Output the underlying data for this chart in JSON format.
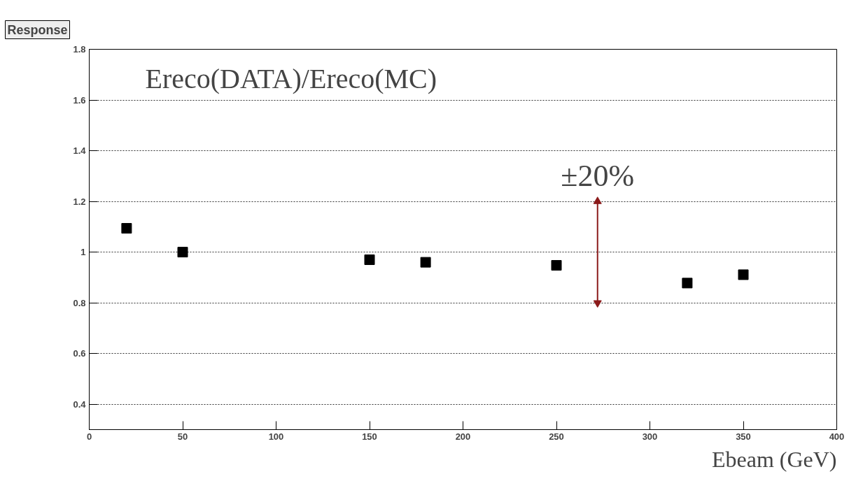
{
  "chart_data": {
    "type": "scatter",
    "title": "Response",
    "xlabel": "Ebeam (GeV)",
    "x": [
      20,
      50,
      150,
      180,
      250,
      320,
      350
    ],
    "series": [
      {
        "color": "#000000",
        "values": [
          1.094,
          1.0,
          0.97,
          0.96,
          0.948,
          0.878,
          0.911
        ]
      },
      {
        "type": "line",
        "color": "#8b1a1a",
        "x": [
          272,
          272
        ],
        "values": [
          0.8,
          1.2
        ],
        "marker": "triangle"
      }
    ],
    "marker": "square",
    "grid": "y",
    "xlim": [
      0,
      400
    ],
    "xticks": [
      0,
      50,
      100,
      150,
      200,
      250,
      300,
      350,
      400
    ],
    "ylim": [
      0.3,
      1.8
    ],
    "yticks": [
      0.4,
      0.6,
      0.8,
      1,
      1.2,
      1.4,
      1.6,
      1.8
    ],
    "annotations": [
      "Ereco(DATA)/Ereco(MC)",
      {
        "text": "±20%",
        "x": 272,
        "y": 1.2
      }
    ]
  }
}
